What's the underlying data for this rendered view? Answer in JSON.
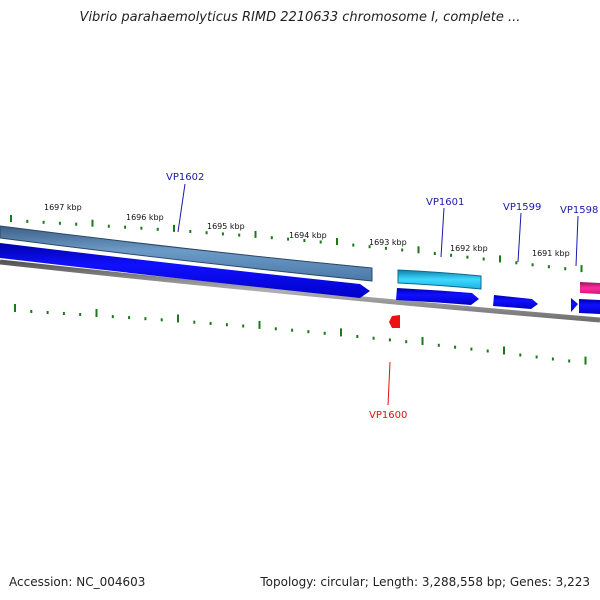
{
  "title": "Vibrio parahaemolyticus RIMD 2210633 chromosome I, complete ...",
  "footer": {
    "accession": "Accession: NC_004603",
    "summary": "Topology: circular; Length: 3,288,558 bp; Genes: 3,223"
  },
  "colors": {
    "tick": "#1a7a1a",
    "backbone": "#808080",
    "gene_forward": "#0000ee",
    "gene_reverse": "#ee0000",
    "cds_steelblue": "#4a7fb5",
    "cds_cyan": "#19c8f0",
    "cds_magenta": "#e8178a",
    "label_blue": "#1a1aaa",
    "label_red": "#dd1111"
  },
  "scale_labels": [
    "1697 kbp",
    "1696 kbp",
    "1695 kbp",
    "1694 kbp",
    "1693 kbp",
    "1692 kbp",
    "1691 kbp"
  ],
  "gene_labels": [
    {
      "name": "VP1602",
      "color": "label_blue"
    },
    {
      "name": "VP1601",
      "color": "label_blue"
    },
    {
      "name": "VP1599",
      "color": "label_blue"
    },
    {
      "name": "VP1598",
      "color": "label_blue"
    },
    {
      "name": "VP1600",
      "color": "label_red"
    }
  ]
}
